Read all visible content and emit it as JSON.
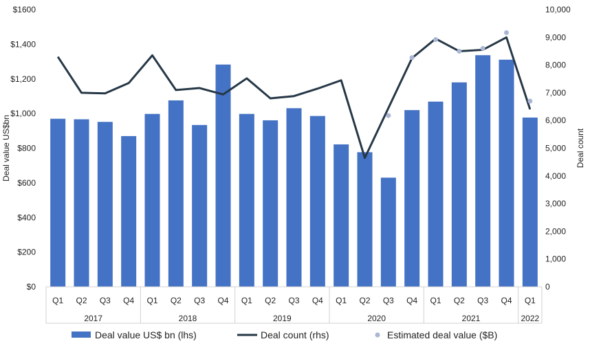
{
  "chart_data": {
    "type": "bar",
    "categories": [
      "Q1",
      "Q2",
      "Q3",
      "Q4",
      "Q1",
      "Q2",
      "Q3",
      "Q4",
      "Q1",
      "Q2",
      "Q3",
      "Q4",
      "Q1",
      "Q2",
      "Q3",
      "Q4",
      "Q1",
      "Q2",
      "Q3",
      "Q4",
      "Q1"
    ],
    "years": [
      {
        "label": "2017",
        "start": 0,
        "count": 4
      },
      {
        "label": "2018",
        "start": 4,
        "count": 4
      },
      {
        "label": "2019",
        "start": 8,
        "count": 4
      },
      {
        "label": "2020",
        "start": 12,
        "count": 4
      },
      {
        "label": "2021",
        "start": 16,
        "count": 4
      },
      {
        "label": "2022",
        "start": 20,
        "count": 1
      }
    ],
    "series": [
      {
        "name": "Deal value US$ bn (lhs)",
        "type": "bar",
        "axis": "left",
        "color": "#4472C4",
        "values": [
          970,
          967,
          952,
          870,
          998,
          1076,
          934,
          1283,
          998,
          961,
          1031,
          986,
          822,
          777,
          630,
          1020,
          1069,
          1180,
          1337,
          1311,
          977
        ]
      },
      {
        "name": "Deal count (rhs)",
        "type": "line",
        "axis": "right",
        "color": "#263746",
        "values": [
          8300,
          7000,
          6980,
          7350,
          8350,
          7100,
          7170,
          6940,
          7520,
          6800,
          6880,
          7150,
          7450,
          4650,
          null,
          8250,
          8950,
          8500,
          8550,
          9000,
          6400
        ]
      },
      {
        "name": "Estimated deal value ($B)",
        "type": "scatter",
        "axis": "right",
        "color": "#AAB6D3",
        "values": [
          null,
          null,
          null,
          null,
          null,
          null,
          null,
          null,
          null,
          null,
          null,
          null,
          null,
          null,
          6180,
          8270,
          8920,
          8500,
          8600,
          9170,
          6700
        ]
      }
    ],
    "left_axis": {
      "label": "Deal value US$bn",
      "ylim": [
        0,
        1600
      ],
      "ticks": [
        0,
        200,
        400,
        600,
        800,
        1000,
        1200,
        1400,
        1600
      ],
      "tick_labels": [
        "$0",
        "$200",
        "$400",
        "$600",
        "$800",
        "$1,000",
        "$1,200",
        "$1,400",
        "$1600"
      ]
    },
    "right_axis": {
      "label": "Deal count",
      "ylim": [
        0,
        10000
      ],
      "ticks": [
        0,
        1000,
        2000,
        3000,
        4000,
        5000,
        6000,
        7000,
        8000,
        9000,
        10000
      ],
      "tick_labels": [
        "0",
        "1,000",
        "2,000",
        "3,000",
        "4,000",
        "5,000",
        "6,000",
        "7,000",
        "8,000",
        "9,000",
        "10,000"
      ]
    },
    "legend_position": "bottom",
    "grid": false
  }
}
